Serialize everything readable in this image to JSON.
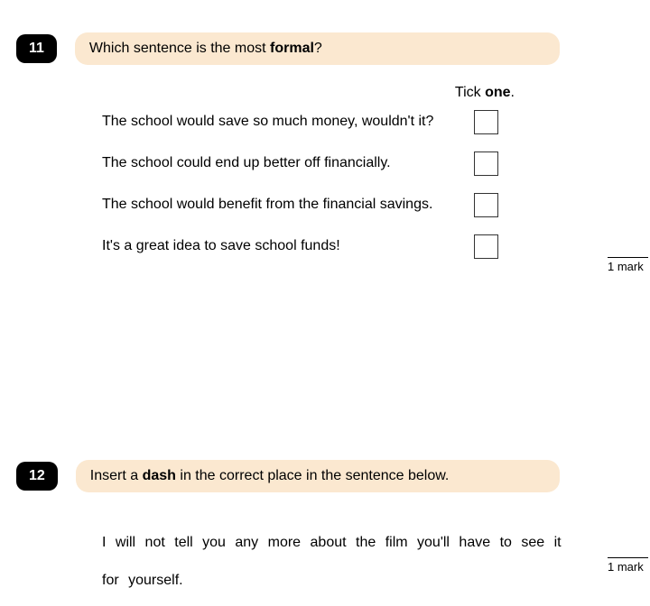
{
  "q11": {
    "number": "11",
    "prompt_prefix": "Which sentence is the most ",
    "prompt_bold": "formal",
    "prompt_suffix": "?",
    "tick_prefix": "Tick ",
    "tick_bold": "one",
    "tick_suffix": ".",
    "options": [
      "The school would save so much money, wouldn't it?",
      "The school could end up better off financially.",
      "The school would benefit from the financial savings.",
      "It's a great idea to save school funds!"
    ],
    "mark": "1 mark"
  },
  "q12": {
    "number": "12",
    "prompt_prefix": "Insert a ",
    "prompt_bold": "dash",
    "prompt_suffix": " in the correct place in the sentence below.",
    "sentence": "I will not tell you any more about the film you'll have to see it for yourself.",
    "mark": "1 mark"
  }
}
